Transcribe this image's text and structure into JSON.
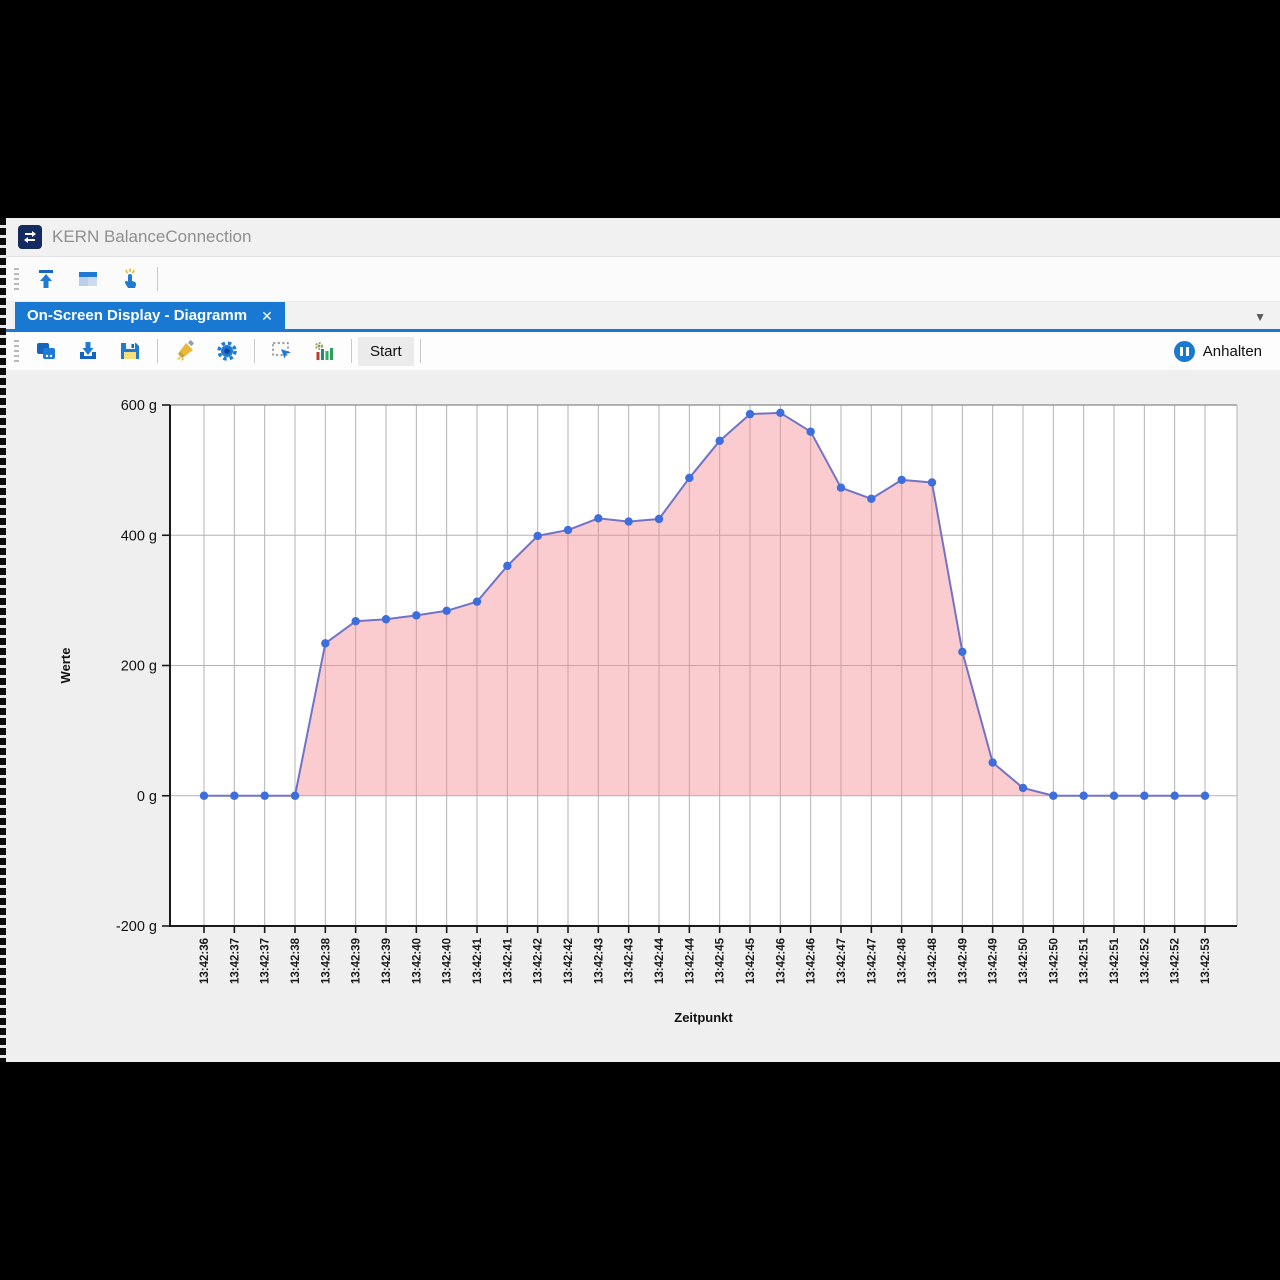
{
  "window": {
    "title": "KERN BalanceConnection"
  },
  "main_toolbar": {
    "buttons": [
      "export",
      "window-layout",
      "touch-mode"
    ]
  },
  "tab": {
    "label": "On-Screen Display - Diagramm",
    "close_glyph": "✕",
    "dropdown_glyph": "▼"
  },
  "chart_toolbar": {
    "buttons": [
      "copy",
      "download",
      "save",
      "brush",
      "settings",
      "select-region",
      "statistics"
    ],
    "start_label": "Start",
    "pause_label": "Anhalten"
  },
  "colors": {
    "accent_blue": "#1878d2",
    "icon_blue": "#1e7ad4",
    "title_text": "#8f8f8f"
  },
  "chart_data": {
    "type": "area",
    "title": "",
    "xlabel": "Zeitpunkt",
    "ylabel": "Werte",
    "y_unit": "g",
    "ylim": [
      -200,
      600
    ],
    "y_ticks": [
      600,
      400,
      200,
      0,
      -200
    ],
    "grid": true,
    "legend": "none",
    "categories": [
      "13:42:36",
      "13:42:37",
      "13:42:37",
      "13:42:38",
      "13:42:38",
      "13:42:39",
      "13:42:39",
      "13:42:40",
      "13:42:40",
      "13:42:41",
      "13:42:41",
      "13:42:42",
      "13:42:42",
      "13:42:43",
      "13:42:43",
      "13:42:44",
      "13:42:44",
      "13:42:45",
      "13:42:45",
      "13:42:46",
      "13:42:46",
      "13:42:47",
      "13:42:47",
      "13:42:48",
      "13:42:48",
      "13:42:49",
      "13:42:49",
      "13:42:50",
      "13:42:50",
      "13:42:51",
      "13:42:51",
      "13:42:52",
      "13:42:52",
      "13:42:53"
    ],
    "series": [
      {
        "name": "Werte",
        "values": [
          0,
          0,
          0,
          0,
          234,
          268,
          271,
          277,
          284,
          298,
          353,
          399,
          408,
          426,
          421,
          425,
          488,
          545,
          586,
          588,
          559,
          473,
          456,
          485,
          481,
          221,
          51,
          12,
          0,
          0,
          0,
          0,
          0,
          0
        ]
      }
    ],
    "colors": {
      "fill": "rgba(242,130,140,0.42)",
      "line": "#7173c7",
      "marker": "#3e6edb",
      "grid": "#b3b3b3",
      "axis": "#1a1a1a",
      "plot_bg": "#ffffff"
    }
  }
}
